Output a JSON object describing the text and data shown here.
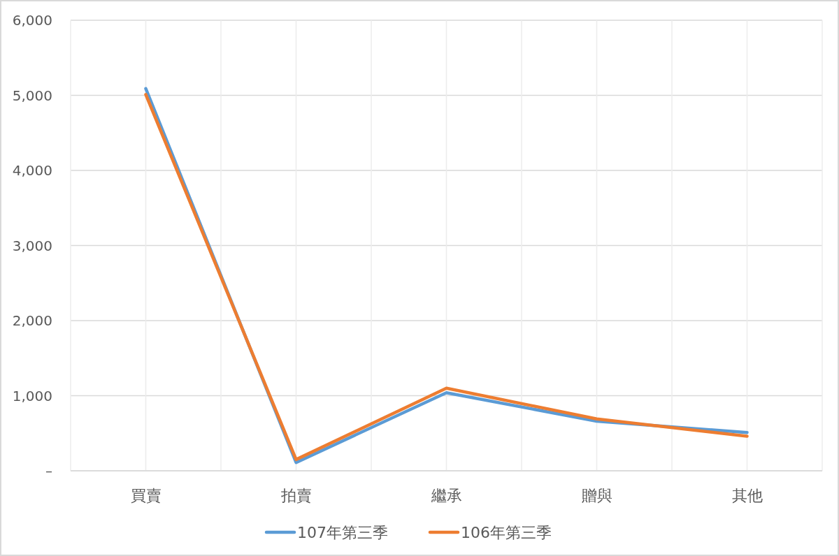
{
  "chart_data": {
    "type": "line",
    "categories": [
      "買賣",
      "拍賣",
      "繼承",
      "贈與",
      "其他"
    ],
    "series": [
      {
        "name": "107年第三季",
        "color": "#5b9bd5",
        "values": [
          5090,
          110,
          1040,
          660,
          510
        ]
      },
      {
        "name": "106年第三季",
        "color": "#ed7d31",
        "values": [
          5010,
          150,
          1100,
          690,
          460
        ]
      }
    ],
    "ylim": [
      0,
      6000
    ],
    "yticks": [
      {
        "value": 0,
        "label": "–"
      },
      {
        "value": 1000,
        "label": "1,000"
      },
      {
        "value": 2000,
        "label": "2,000"
      },
      {
        "value": 3000,
        "label": "3,000"
      },
      {
        "value": 4000,
        "label": "4,000"
      },
      {
        "value": 5000,
        "label": "5,000"
      },
      {
        "value": 6000,
        "label": "6,000"
      }
    ],
    "grid": true,
    "legend": "bottom"
  }
}
